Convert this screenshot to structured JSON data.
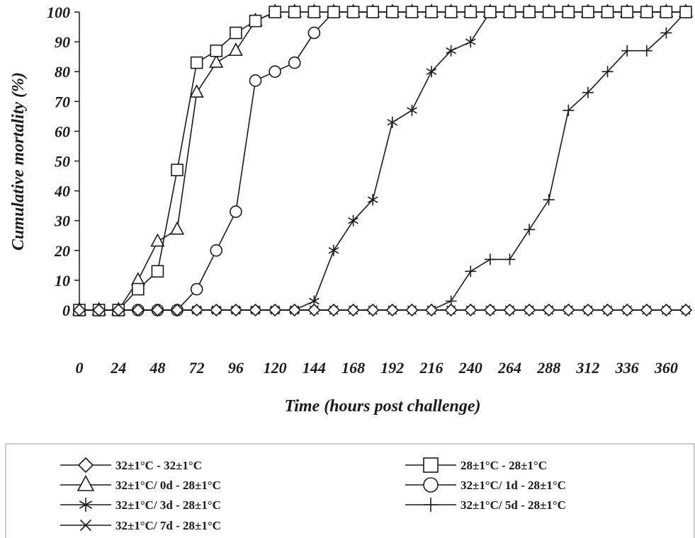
{
  "chart_data": {
    "type": "line",
    "xlabel": "Time (hours post challenge)",
    "ylabel": "Cumulative mortality (%)",
    "xlim": [
      0,
      372
    ],
    "ylim": [
      0,
      100
    ],
    "x_ticks": [
      "0",
      "24",
      "48",
      "72",
      "96",
      "120",
      "144",
      "168",
      "192",
      "216",
      "240",
      "264",
      "288",
      "312",
      "336",
      "360"
    ],
    "y_ticks": [
      "0",
      "10",
      "20",
      "30",
      "40",
      "50",
      "60",
      "70",
      "80",
      "90",
      "100"
    ],
    "grid": false,
    "legend_position": "bottom",
    "x": [
      0,
      12,
      24,
      36,
      48,
      60,
      72,
      84,
      96,
      108,
      120,
      132,
      144,
      156,
      168,
      180,
      192,
      204,
      216,
      228,
      240,
      252,
      264,
      276,
      288,
      300,
      312,
      324,
      336,
      348,
      360,
      372
    ],
    "series": [
      {
        "name": "32±1°C - 32±1°C",
        "marker": "diamond",
        "values": [
          0,
          0,
          0,
          0,
          0,
          0,
          0,
          0,
          0,
          0,
          0,
          0,
          0,
          0,
          0,
          0,
          0,
          0,
          0,
          0,
          0,
          0,
          0,
          0,
          0,
          0,
          0,
          0,
          0,
          0,
          0,
          0
        ]
      },
      {
        "name": "28±1°C - 28±1°C",
        "marker": "square",
        "values": [
          0,
          0,
          0,
          7,
          13,
          47,
          83,
          87,
          93,
          97,
          100,
          100,
          100,
          100,
          100,
          100,
          100,
          100,
          100,
          100,
          100,
          100,
          100,
          100,
          100,
          100,
          100,
          100,
          100,
          100,
          100,
          100
        ]
      },
      {
        "name": "32±1°C/ 0d - 28±1°C",
        "marker": "triangle",
        "values": [
          0,
          0,
          0,
          10,
          23,
          27,
          73,
          83,
          87,
          97,
          100,
          100,
          100,
          100,
          100,
          100,
          100,
          100,
          100,
          100,
          100,
          100,
          100,
          100,
          100,
          100,
          100,
          100,
          100,
          100,
          100,
          100
        ]
      },
      {
        "name": "32±1°C/ 1d - 28±1°C",
        "marker": "circle",
        "values": [
          0,
          0,
          0,
          0,
          0,
          0,
          7,
          20,
          33,
          77,
          80,
          83,
          93,
          100,
          100,
          100,
          100,
          100,
          100,
          100,
          100,
          100,
          100,
          100,
          100,
          100,
          100,
          100,
          100,
          100,
          100,
          100
        ]
      },
      {
        "name": "32±1°C/ 3d - 28±1°C",
        "marker": "asterisk",
        "values": [
          0,
          0,
          0,
          0,
          0,
          0,
          0,
          0,
          0,
          0,
          0,
          0,
          3,
          20,
          30,
          37,
          63,
          67,
          80,
          87,
          90,
          100,
          100,
          100,
          100,
          100,
          100,
          100,
          100,
          100,
          100,
          100
        ]
      },
      {
        "name": "32±1°C/ 5d - 28±1°C",
        "marker": "plus",
        "values": [
          0,
          0,
          0,
          0,
          0,
          0,
          0,
          0,
          0,
          0,
          0,
          0,
          0,
          0,
          0,
          0,
          0,
          0,
          0,
          3,
          13,
          17,
          17,
          27,
          37,
          67,
          73,
          80,
          87,
          87,
          93,
          100
        ]
      },
      {
        "name": "32±1°C/ 7d - 28±1°C",
        "marker": "cross",
        "values": [
          0,
          0,
          0,
          0,
          0,
          0,
          0,
          0,
          0,
          0,
          0,
          0,
          0,
          0,
          0,
          0,
          0,
          0,
          0,
          0,
          0,
          0,
          0,
          0,
          0,
          0,
          0,
          0,
          0,
          0,
          0,
          0
        ]
      }
    ]
  },
  "colors": {
    "ink": "#1a1a1a",
    "background": "#ffffff"
  }
}
